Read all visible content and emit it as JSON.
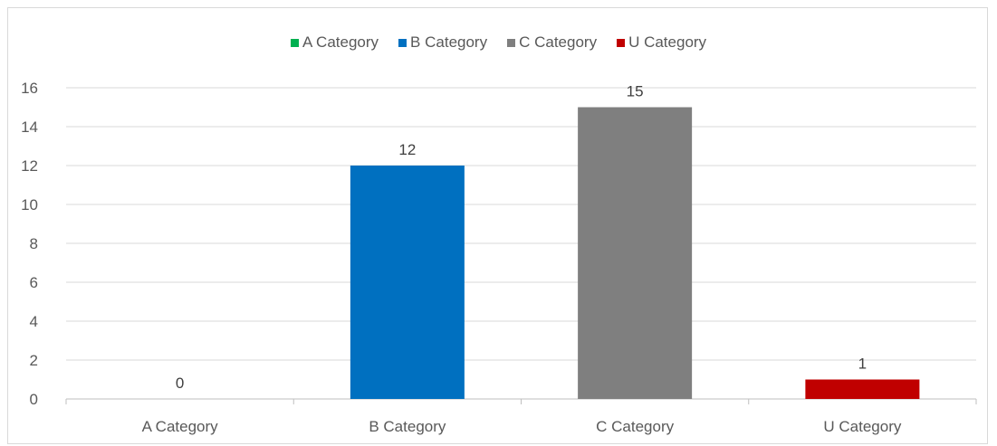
{
  "chart_data": {
    "type": "bar",
    "categories": [
      "A Category",
      "B Category",
      "C Category",
      "U Category"
    ],
    "values": [
      0,
      12,
      15,
      1
    ],
    "colors": [
      "#00b050",
      "#0070c0",
      "#7f7f7f",
      "#c00000"
    ],
    "legend": [
      "A Category",
      "B Category",
      "C Category",
      "U Category"
    ],
    "legend_position": "top",
    "ylim": [
      0,
      16
    ],
    "yticks": [
      "0",
      "2",
      "4",
      "6",
      "8",
      "10",
      "12",
      "14",
      "16"
    ],
    "grid": true,
    "data_labels": [
      "0",
      "12",
      "15",
      "1"
    ]
  }
}
